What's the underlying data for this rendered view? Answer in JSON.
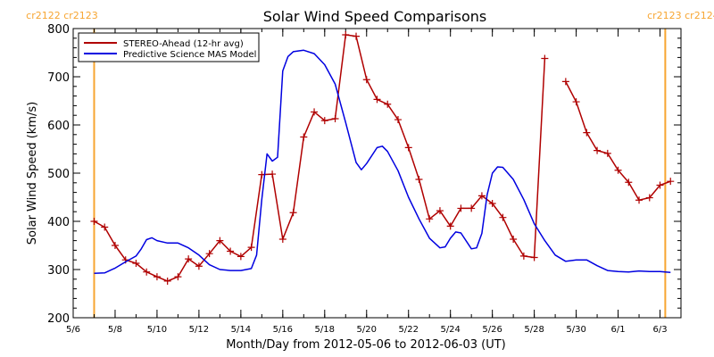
{
  "chart_data": {
    "type": "line",
    "title": "Solar Wind Speed Comparisons",
    "xlabel": "Month/Day from 2012-05-06 to 2012-06-03 (UT)",
    "ylabel": "Solar Wind Speed (km/s)",
    "xlim": [
      "2012-05-06",
      "2012-06-04"
    ],
    "ylim": [
      200,
      800
    ],
    "y_ticks": [
      200,
      300,
      400,
      500,
      600,
      700,
      800
    ],
    "x_ticks": [
      {
        "date": "2012-05-06",
        "label": "5/6"
      },
      {
        "date": "2012-05-08",
        "label": "5/8"
      },
      {
        "date": "2012-05-10",
        "label": "5/10"
      },
      {
        "date": "2012-05-12",
        "label": "5/12"
      },
      {
        "date": "2012-05-14",
        "label": "5/14"
      },
      {
        "date": "2012-05-16",
        "label": "5/16"
      },
      {
        "date": "2012-05-18",
        "label": "5/18"
      },
      {
        "date": "2012-05-20",
        "label": "5/20"
      },
      {
        "date": "2012-05-22",
        "label": "5/22"
      },
      {
        "date": "2012-05-24",
        "label": "5/24"
      },
      {
        "date": "2012-05-26",
        "label": "5/26"
      },
      {
        "date": "2012-05-28",
        "label": "5/28"
      },
      {
        "date": "2012-05-30",
        "label": "5/30"
      },
      {
        "date": "2012-06-01",
        "label": "6/1"
      },
      {
        "date": "2012-06-03",
        "label": "6/3"
      }
    ],
    "grid": false,
    "legend_position": "top-left",
    "carrington_markers": [
      {
        "date": "2012-05-07 00:00",
        "labels": [
          "cr2122",
          "cr2123"
        ],
        "color": "#f7a531"
      },
      {
        "date": "2012-06-03 06:00",
        "labels": [
          "cr2123",
          "cr2124"
        ],
        "color": "#f7a531"
      }
    ],
    "series": [
      {
        "name": "STEREO-Ahead (12-hr avg)",
        "color": "#b00000",
        "marker": "plus",
        "segments": [
          [
            [
              "2012-05-07 00:00",
              400
            ],
            [
              "2012-05-07 12:00",
              388
            ],
            [
              "2012-05-08 00:00",
              350
            ],
            [
              "2012-05-08 12:00",
              320
            ],
            [
              "2012-05-09 00:00",
              313
            ],
            [
              "2012-05-09 12:00",
              295
            ],
            [
              "2012-05-10 00:00",
              285
            ],
            [
              "2012-05-10 12:00",
              276
            ],
            [
              "2012-05-11 00:00",
              285
            ],
            [
              "2012-05-11 12:00",
              322
            ],
            [
              "2012-05-12 00:00",
              307
            ],
            [
              "2012-05-12 12:00",
              333
            ],
            [
              "2012-05-13 00:00",
              360
            ],
            [
              "2012-05-13 12:00",
              338
            ],
            [
              "2012-05-14 00:00",
              327
            ],
            [
              "2012-05-14 12:00",
              346
            ],
            [
              "2012-05-15 00:00",
              497
            ],
            [
              "2012-05-15 12:00",
              498
            ],
            [
              "2012-05-16 00:00",
              363
            ],
            [
              "2012-05-16 12:00",
              418
            ],
            [
              "2012-05-17 00:00",
              575
            ],
            [
              "2012-05-17 12:00",
              627
            ],
            [
              "2012-05-18 00:00",
              609
            ],
            [
              "2012-05-18 12:00",
              613
            ],
            [
              "2012-05-19 00:00",
              787
            ],
            [
              "2012-05-19 12:00",
              784
            ],
            [
              "2012-05-20 00:00",
              694
            ],
            [
              "2012-05-20 12:00",
              653
            ],
            [
              "2012-05-21 00:00",
              643
            ],
            [
              "2012-05-21 12:00",
              611
            ],
            [
              "2012-05-22 00:00",
              553
            ],
            [
              "2012-05-22 12:00",
              487
            ],
            [
              "2012-05-23 00:00",
              405
            ],
            [
              "2012-05-23 12:00",
              422
            ],
            [
              "2012-05-24 00:00",
              390
            ],
            [
              "2012-05-24 12:00",
              427
            ],
            [
              "2012-05-25 00:00",
              427
            ],
            [
              "2012-05-25 12:00",
              453
            ],
            [
              "2012-05-26 00:00",
              437
            ],
            [
              "2012-05-26 12:00",
              408
            ],
            [
              "2012-05-27 00:00",
              363
            ],
            [
              "2012-05-27 12:00",
              328
            ],
            [
              "2012-05-28 00:00",
              325
            ],
            [
              "2012-05-28 12:00",
              738
            ]
          ],
          [
            [
              "2012-05-29 12:00",
              690
            ],
            [
              "2012-05-30 00:00",
              648
            ],
            [
              "2012-05-30 12:00",
              584
            ],
            [
              "2012-05-31 00:00",
              547
            ],
            [
              "2012-05-31 12:00",
              541
            ],
            [
              "2012-06-01 00:00",
              506
            ],
            [
              "2012-06-01 12:00",
              481
            ],
            [
              "2012-06-02 00:00",
              444
            ],
            [
              "2012-06-02 12:00",
              449
            ],
            [
              "2012-06-03 00:00",
              475
            ],
            [
              "2012-06-03 12:00",
              483
            ]
          ]
        ]
      },
      {
        "name": "Predictive Science MAS Model",
        "color": "#0000e0",
        "marker": "none",
        "segments": [
          [
            [
              "2012-05-07 00:00",
              292
            ],
            [
              "2012-05-07 12:00",
              293
            ],
            [
              "2012-05-08 00:00",
              303
            ],
            [
              "2012-05-08 12:00",
              316
            ],
            [
              "2012-05-09 00:00",
              328
            ],
            [
              "2012-05-09 06:00",
              343
            ],
            [
              "2012-05-09 12:00",
              362
            ],
            [
              "2012-05-09 18:00",
              366
            ],
            [
              "2012-05-10 00:00",
              360
            ],
            [
              "2012-05-10 12:00",
              355
            ],
            [
              "2012-05-11 00:00",
              355
            ],
            [
              "2012-05-11 12:00",
              345
            ],
            [
              "2012-05-12 00:00",
              330
            ],
            [
              "2012-05-12 12:00",
              310
            ],
            [
              "2012-05-13 00:00",
              300
            ],
            [
              "2012-05-13 12:00",
              298
            ],
            [
              "2012-05-14 00:00",
              298
            ],
            [
              "2012-05-14 12:00",
              302
            ],
            [
              "2012-05-14 18:00",
              330
            ],
            [
              "2012-05-15 00:00",
              445
            ],
            [
              "2012-05-15 06:00",
              540
            ],
            [
              "2012-05-15 12:00",
              525
            ],
            [
              "2012-05-15 18:00",
              533
            ],
            [
              "2012-05-16 00:00",
              712
            ],
            [
              "2012-05-16 06:00",
              742
            ],
            [
              "2012-05-16 12:00",
              752
            ],
            [
              "2012-05-17 00:00",
              755
            ],
            [
              "2012-05-17 12:00",
              748
            ],
            [
              "2012-05-18 00:00",
              725
            ],
            [
              "2012-05-18 12:00",
              685
            ],
            [
              "2012-05-19 00:00",
              605
            ],
            [
              "2012-05-19 12:00",
              522
            ],
            [
              "2012-05-19 18:00",
              507
            ],
            [
              "2012-05-20 00:00",
              520
            ],
            [
              "2012-05-20 12:00",
              553
            ],
            [
              "2012-05-20 18:00",
              556
            ],
            [
              "2012-05-21 00:00",
              545
            ],
            [
              "2012-05-21 12:00",
              505
            ],
            [
              "2012-05-22 00:00",
              450
            ],
            [
              "2012-05-22 12:00",
              405
            ],
            [
              "2012-05-23 00:00",
              365
            ],
            [
              "2012-05-23 12:00",
              345
            ],
            [
              "2012-05-23 18:00",
              347
            ],
            [
              "2012-05-24 00:00",
              365
            ],
            [
              "2012-05-24 06:00",
              378
            ],
            [
              "2012-05-24 12:00",
              376
            ],
            [
              "2012-05-25 00:00",
              343
            ],
            [
              "2012-05-25 06:00",
              345
            ],
            [
              "2012-05-25 12:00",
              375
            ],
            [
              "2012-05-25 18:00",
              455
            ],
            [
              "2012-05-26 00:00",
              500
            ],
            [
              "2012-05-26 06:00",
              513
            ],
            [
              "2012-05-26 12:00",
              512
            ],
            [
              "2012-05-27 00:00",
              487
            ],
            [
              "2012-05-27 12:00",
              445
            ],
            [
              "2012-05-28 00:00",
              395
            ],
            [
              "2012-05-28 12:00",
              360
            ],
            [
              "2012-05-29 00:00",
              330
            ],
            [
              "2012-05-29 12:00",
              317
            ],
            [
              "2012-05-30 00:00",
              320
            ],
            [
              "2012-05-30 12:00",
              320
            ],
            [
              "2012-05-31 00:00",
              308
            ],
            [
              "2012-05-31 12:00",
              298
            ],
            [
              "2012-06-01 00:00",
              296
            ],
            [
              "2012-06-01 12:00",
              295
            ],
            [
              "2012-06-02 00:00",
              297
            ],
            [
              "2012-06-02 12:00",
              296
            ],
            [
              "2012-06-03 00:00",
              296
            ],
            [
              "2012-06-03 12:00",
              294
            ]
          ]
        ]
      }
    ]
  }
}
